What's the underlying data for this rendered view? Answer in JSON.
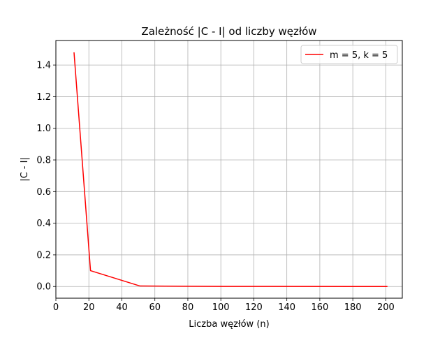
{
  "chart_data": {
    "type": "line",
    "title": "Zależność |C - I| od liczby węzłów",
    "xlabel": "Liczba węzłów (n)",
    "ylabel": "|C - I|",
    "xlim": [
      0,
      210
    ],
    "ylim": [
      -0.074,
      1.555
    ],
    "xticks": [
      0,
      20,
      40,
      60,
      80,
      100,
      120,
      140,
      160,
      180,
      200
    ],
    "yticks": [
      0.0,
      0.2,
      0.4,
      0.6,
      0.8,
      1.0,
      1.2,
      1.4
    ],
    "xtick_labels": [
      "0",
      "20",
      "40",
      "60",
      "80",
      "100",
      "120",
      "140",
      "160",
      "180",
      "200"
    ],
    "ytick_labels": [
      "0.0",
      "0.2",
      "0.4",
      "0.6",
      "0.8",
      "1.0",
      "1.2",
      "1.4"
    ],
    "grid": true,
    "legend_position": "top-right",
    "series": [
      {
        "name": "m = 5, k = 5",
        "color": "#ff0000",
        "x": [
          11,
          21,
          51,
          101,
          201
        ],
        "y": [
          1.48,
          0.1,
          0.003,
          0.0005,
          0.0001
        ]
      }
    ]
  }
}
